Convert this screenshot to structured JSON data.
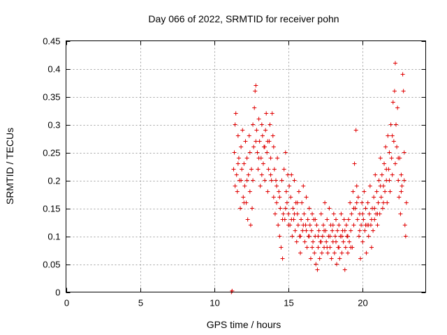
{
  "chart_data": {
    "type": "scatter",
    "title": "Day 066 of 2022, SRMTID for receiver pohn",
    "xlabel": "GPS time / hours",
    "ylabel": "SRMTID / TECUs",
    "xlim": [
      0,
      24.25
    ],
    "ylim": [
      0,
      0.45
    ],
    "grid": true,
    "marker": "plus",
    "color": "#e00000",
    "x_ticks": [
      0,
      5,
      10,
      15,
      20
    ],
    "x_tick_labels": [
      "0",
      "5",
      "10",
      "15",
      "20"
    ],
    "y_ticks": [
      0,
      0.05,
      0.1,
      0.15,
      0.2,
      0.25,
      0.3,
      0.35,
      0.4,
      0.45
    ],
    "y_tick_labels": [
      "0",
      "0.05",
      "0.1",
      "0.15",
      "0.2",
      "0.25",
      "0.3",
      "0.35",
      "0.4",
      "0.45"
    ],
    "series": [
      {
        "name": "SRMTID",
        "points": [
          [
            11.15,
            0.0
          ],
          [
            11.2,
            0.002
          ],
          [
            11.3,
            0.22
          ],
          [
            11.35,
            0.25
          ],
          [
            11.4,
            0.3
          ],
          [
            11.45,
            0.32
          ],
          [
            11.5,
            0.21
          ],
          [
            11.55,
            0.18
          ],
          [
            11.6,
            0.28
          ],
          [
            11.65,
            0.24
          ],
          [
            11.7,
            0.2
          ],
          [
            11.75,
            0.15
          ],
          [
            11.8,
            0.26
          ],
          [
            11.85,
            0.22
          ],
          [
            11.9,
            0.29
          ],
          [
            11.95,
            0.17
          ],
          [
            12.0,
            0.23
          ],
          [
            12.05,
            0.19
          ],
          [
            12.1,
            0.27
          ],
          [
            12.15,
            0.16
          ],
          [
            12.2,
            0.24
          ],
          [
            12.25,
            0.13
          ],
          [
            12.3,
            0.21
          ],
          [
            12.35,
            0.28
          ],
          [
            12.4,
            0.18
          ],
          [
            12.45,
            0.12
          ],
          [
            12.5,
            0.22
          ],
          [
            12.55,
            0.15
          ],
          [
            12.6,
            0.3
          ],
          [
            12.65,
            0.26
          ],
          [
            12.7,
            0.33
          ],
          [
            12.75,
            0.36
          ],
          [
            12.8,
            0.37
          ],
          [
            12.85,
            0.29
          ],
          [
            12.9,
            0.25
          ],
          [
            12.95,
            0.22
          ],
          [
            13.0,
            0.31
          ],
          [
            13.05,
            0.27
          ],
          [
            13.1,
            0.19
          ],
          [
            13.15,
            0.24
          ],
          [
            13.2,
            0.21
          ],
          [
            13.25,
            0.28
          ],
          [
            13.3,
            0.23
          ],
          [
            13.35,
            0.26
          ],
          [
            13.4,
            0.2
          ],
          [
            13.45,
            0.29
          ],
          [
            13.5,
            0.32
          ],
          [
            13.55,
            0.25
          ],
          [
            13.6,
            0.18
          ],
          [
            13.65,
            0.22
          ],
          [
            13.7,
            0.27
          ],
          [
            13.75,
            0.3
          ],
          [
            13.8,
            0.24
          ],
          [
            13.85,
            0.2
          ],
          [
            13.9,
            0.32
          ],
          [
            13.95,
            0.28
          ],
          [
            14.0,
            0.17
          ],
          [
            14.05,
            0.22
          ],
          [
            14.1,
            0.14
          ],
          [
            14.15,
            0.2
          ],
          [
            14.2,
            0.16
          ],
          [
            14.25,
            0.24
          ],
          [
            14.3,
            0.12
          ],
          [
            14.35,
            0.18
          ],
          [
            14.4,
            0.1
          ],
          [
            14.45,
            0.15
          ],
          [
            14.5,
            0.08
          ],
          [
            14.55,
            0.2
          ],
          [
            14.6,
            0.06
          ],
          [
            14.65,
            0.14
          ],
          [
            14.7,
            0.22
          ],
          [
            14.75,
            0.13
          ],
          [
            14.8,
            0.25
          ],
          [
            14.85,
            0.18
          ],
          [
            14.9,
            0.16
          ],
          [
            14.95,
            0.21
          ],
          [
            15.0,
            0.14
          ],
          [
            15.05,
            0.19
          ],
          [
            15.1,
            0.12
          ],
          [
            15.15,
            0.17
          ],
          [
            15.2,
            0.21
          ],
          [
            15.25,
            0.1
          ],
          [
            15.3,
            0.15
          ],
          [
            15.35,
            0.13
          ],
          [
            15.4,
            0.2
          ],
          [
            15.45,
            0.11
          ],
          [
            15.5,
            0.16
          ],
          [
            15.55,
            0.09
          ],
          [
            15.6,
            0.14
          ],
          [
            15.65,
            0.12
          ],
          [
            15.7,
            0.18
          ],
          [
            15.75,
            0.1
          ],
          [
            15.8,
            0.07
          ],
          [
            15.85,
            0.13
          ],
          [
            15.9,
            0.16
          ],
          [
            15.95,
            0.11
          ],
          [
            16.0,
            0.19
          ],
          [
            16.05,
            0.14
          ],
          [
            16.1,
            0.09
          ],
          [
            16.15,
            0.12
          ],
          [
            16.2,
            0.17
          ],
          [
            16.25,
            0.08
          ],
          [
            16.3,
            0.13
          ],
          [
            16.35,
            0.1
          ],
          [
            16.4,
            0.15
          ],
          [
            16.45,
            0.12
          ],
          [
            16.5,
            0.06
          ],
          [
            16.55,
            0.11
          ],
          [
            16.6,
            0.14
          ],
          [
            16.65,
            0.09
          ],
          [
            16.7,
            0.13
          ],
          [
            16.75,
            0.07
          ],
          [
            16.8,
            0.1
          ],
          [
            16.85,
            0.05
          ],
          [
            16.9,
            0.12
          ],
          [
            16.95,
            0.04
          ],
          [
            17.0,
            0.08
          ],
          [
            17.05,
            0.11
          ],
          [
            17.1,
            0.06
          ],
          [
            17.15,
            0.09
          ],
          [
            17.2,
            0.14
          ],
          [
            17.25,
            0.07
          ],
          [
            17.3,
            0.1
          ],
          [
            17.35,
            0.12
          ],
          [
            17.4,
            0.08
          ],
          [
            17.45,
            0.16
          ],
          [
            17.5,
            0.11
          ],
          [
            17.55,
            0.09
          ],
          [
            17.6,
            0.13
          ],
          [
            17.65,
            0.07
          ],
          [
            17.7,
            0.1
          ],
          [
            17.75,
            0.15
          ],
          [
            17.8,
            0.08
          ],
          [
            17.85,
            0.12
          ],
          [
            17.9,
            0.06
          ],
          [
            17.95,
            0.11
          ],
          [
            18.0,
            0.09
          ],
          [
            18.05,
            0.14
          ],
          [
            18.1,
            0.07
          ],
          [
            18.15,
            0.1
          ],
          [
            18.2,
            0.13
          ],
          [
            18.25,
            0.05
          ],
          [
            18.3,
            0.11
          ],
          [
            18.35,
            0.08
          ],
          [
            18.4,
            0.12
          ],
          [
            18.45,
            0.06
          ],
          [
            18.5,
            0.1
          ],
          [
            18.55,
            0.14
          ],
          [
            18.6,
            0.07
          ],
          [
            18.65,
            0.11
          ],
          [
            18.7,
            0.09
          ],
          [
            18.75,
            0.13
          ],
          [
            18.8,
            0.04
          ],
          [
            18.85,
            0.08
          ],
          [
            18.9,
            0.12
          ],
          [
            18.95,
            0.1
          ],
          [
            19.0,
            0.07
          ],
          [
            19.05,
            0.13
          ],
          [
            19.1,
            0.09
          ],
          [
            19.15,
            0.16
          ],
          [
            19.2,
            0.11
          ],
          [
            19.25,
            0.14
          ],
          [
            19.3,
            0.08
          ],
          [
            19.35,
            0.18
          ],
          [
            19.4,
            0.12
          ],
          [
            19.45,
            0.23
          ],
          [
            19.5,
            0.15
          ],
          [
            19.55,
            0.29
          ],
          [
            19.6,
            0.19
          ],
          [
            19.65,
            0.13
          ],
          [
            19.7,
            0.17
          ],
          [
            19.75,
            0.1
          ],
          [
            19.8,
            0.14
          ],
          [
            19.85,
            0.06
          ],
          [
            19.9,
            0.12
          ],
          [
            19.95,
            0.16
          ],
          [
            20.0,
            0.09
          ],
          [
            20.05,
            0.13
          ],
          [
            20.1,
            0.18
          ],
          [
            20.15,
            0.11
          ],
          [
            20.2,
            0.15
          ],
          [
            20.25,
            0.07
          ],
          [
            20.3,
            0.12
          ],
          [
            20.35,
            0.16
          ],
          [
            20.4,
            0.1
          ],
          [
            20.45,
            0.14
          ],
          [
            20.5,
            0.19
          ],
          [
            20.55,
            0.12
          ],
          [
            20.6,
            0.08
          ],
          [
            20.65,
            0.15
          ],
          [
            20.7,
            0.11
          ],
          [
            20.75,
            0.17
          ],
          [
            20.8,
            0.13
          ],
          [
            20.85,
            0.21
          ],
          [
            20.9,
            0.14
          ],
          [
            20.95,
            0.18
          ],
          [
            21.0,
            0.12
          ],
          [
            21.05,
            0.16
          ],
          [
            21.1,
            0.2
          ],
          [
            21.15,
            0.14
          ],
          [
            21.2,
            0.24
          ],
          [
            21.25,
            0.17
          ],
          [
            21.3,
            0.21
          ],
          [
            21.35,
            0.15
          ],
          [
            21.4,
            0.19
          ],
          [
            21.45,
            0.23
          ],
          [
            21.5,
            0.18
          ],
          [
            21.55,
            0.26
          ],
          [
            21.6,
            0.2
          ],
          [
            21.65,
            0.16
          ],
          [
            21.7,
            0.28
          ],
          [
            21.75,
            0.22
          ],
          [
            21.8,
            0.25
          ],
          [
            21.85,
            0.18
          ],
          [
            21.9,
            0.3
          ],
          [
            21.95,
            0.24
          ],
          [
            22.0,
            0.21
          ],
          [
            22.05,
            0.34
          ],
          [
            22.1,
            0.27
          ],
          [
            22.15,
            0.36
          ],
          [
            22.2,
            0.41
          ],
          [
            22.25,
            0.3
          ],
          [
            22.3,
            0.26
          ],
          [
            22.35,
            0.33
          ],
          [
            22.4,
            0.2
          ],
          [
            22.45,
            0.17
          ],
          [
            22.5,
            0.24
          ],
          [
            22.55,
            0.14
          ],
          [
            22.6,
            0.21
          ],
          [
            22.65,
            0.19
          ],
          [
            22.7,
            0.39
          ],
          [
            22.75,
            0.36
          ],
          [
            22.8,
            0.25
          ],
          [
            22.85,
            0.12
          ],
          [
            22.9,
            0.1
          ],
          [
            22.95,
            0.16
          ],
          [
            11.4,
            0.19
          ],
          [
            11.6,
            0.23
          ],
          [
            11.8,
            0.2
          ],
          [
            12.0,
            0.16
          ],
          [
            12.2,
            0.2
          ],
          [
            12.4,
            0.25
          ],
          [
            12.6,
            0.2
          ],
          [
            12.8,
            0.27
          ],
          [
            13.0,
            0.24
          ],
          [
            13.2,
            0.3
          ],
          [
            13.4,
            0.26
          ],
          [
            13.6,
            0.27
          ],
          [
            13.8,
            0.21
          ],
          [
            14.0,
            0.26
          ],
          [
            14.2,
            0.19
          ],
          [
            14.4,
            0.17
          ],
          [
            14.6,
            0.13
          ],
          [
            14.8,
            0.15
          ],
          [
            15.0,
            0.12
          ],
          [
            15.2,
            0.13
          ],
          [
            15.4,
            0.14
          ],
          [
            15.6,
            0.16
          ],
          [
            15.8,
            0.1
          ],
          [
            16.0,
            0.12
          ],
          [
            16.2,
            0.11
          ],
          [
            16.4,
            0.1
          ],
          [
            16.6,
            0.08
          ],
          [
            16.8,
            0.13
          ],
          [
            17.0,
            0.1
          ],
          [
            17.2,
            0.09
          ],
          [
            17.4,
            0.11
          ],
          [
            17.6,
            0.08
          ],
          [
            17.8,
            0.1
          ],
          [
            18.0,
            0.12
          ],
          [
            18.2,
            0.09
          ],
          [
            18.4,
            0.08
          ],
          [
            18.6,
            0.1
          ],
          [
            18.8,
            0.11
          ],
          [
            19.0,
            0.1
          ],
          [
            19.2,
            0.08
          ],
          [
            19.4,
            0.15
          ],
          [
            19.6,
            0.16
          ],
          [
            19.8,
            0.11
          ],
          [
            20.0,
            0.14
          ],
          [
            20.2,
            0.12
          ],
          [
            20.4,
            0.12
          ],
          [
            20.6,
            0.13
          ],
          [
            20.8,
            0.15
          ],
          [
            21.0,
            0.14
          ],
          [
            21.2,
            0.19
          ],
          [
            21.4,
            0.16
          ],
          [
            21.6,
            0.22
          ],
          [
            21.8,
            0.2
          ],
          [
            22.0,
            0.28
          ],
          [
            22.2,
            0.23
          ],
          [
            22.4,
            0.24
          ],
          [
            22.6,
            0.18
          ],
          [
            22.8,
            0.2
          ]
        ]
      }
    ]
  }
}
